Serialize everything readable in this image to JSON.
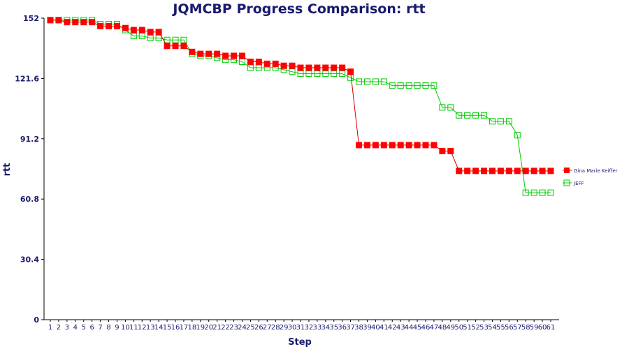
{
  "chart_data": {
    "type": "line",
    "title": "JQMCBP Progress Comparison: rtt",
    "xlabel": "Step",
    "ylabel": "rtt",
    "ylim": [
      0,
      152
    ],
    "yticks": [
      "0",
      "30.4",
      "60.8",
      "91.2",
      "121.6",
      "152"
    ],
    "x": [
      1,
      2,
      3,
      4,
      5,
      6,
      7,
      8,
      9,
      10,
      11,
      12,
      13,
      14,
      15,
      16,
      17,
      18,
      19,
      20,
      21,
      22,
      23,
      24,
      25,
      26,
      27,
      28,
      29,
      30,
      31,
      32,
      33,
      34,
      35,
      36,
      37,
      38,
      39,
      40,
      41,
      42,
      43,
      44,
      45,
      46,
      47,
      48,
      49,
      50,
      51,
      52,
      53,
      54,
      55,
      56,
      57,
      58,
      59,
      60,
      61
    ],
    "legend_position": "right",
    "grid": false,
    "series": [
      {
        "name": "Gina Marie Keiffer",
        "color": "#ff0000",
        "line_color": "#cc0000",
        "marker": "filled-square",
        "values": [
          151,
          151,
          150,
          150,
          150,
          150,
          148,
          148,
          148,
          147,
          146,
          146,
          145,
          145,
          138,
          138,
          138,
          135,
          134,
          134,
          134,
          133,
          133,
          133,
          130,
          130,
          129,
          129,
          128,
          128,
          127,
          127,
          127,
          127,
          127,
          127,
          125,
          88,
          88,
          88,
          88,
          88,
          88,
          88,
          88,
          88,
          88,
          85,
          85,
          75,
          75,
          75,
          75,
          75,
          75,
          75,
          75,
          75,
          75,
          75,
          75
        ]
      },
      {
        "name": "JEFF",
        "color": "#00cc00",
        "line_color": "#00cc00",
        "marker": "hollow-square",
        "values": [
          151,
          151,
          151,
          151,
          151,
          151,
          149,
          149,
          149,
          146,
          143,
          143,
          142,
          142,
          141,
          141,
          141,
          134,
          133,
          133,
          132,
          131,
          131,
          130,
          127,
          127,
          127,
          127,
          126,
          125,
          124,
          124,
          124,
          124,
          124,
          124,
          122,
          120,
          120,
          120,
          120,
          118,
          118,
          118,
          118,
          118,
          118,
          107,
          107,
          103,
          103,
          103,
          103,
          100,
          100,
          100,
          93,
          64,
          64,
          64,
          64
        ]
      }
    ]
  }
}
